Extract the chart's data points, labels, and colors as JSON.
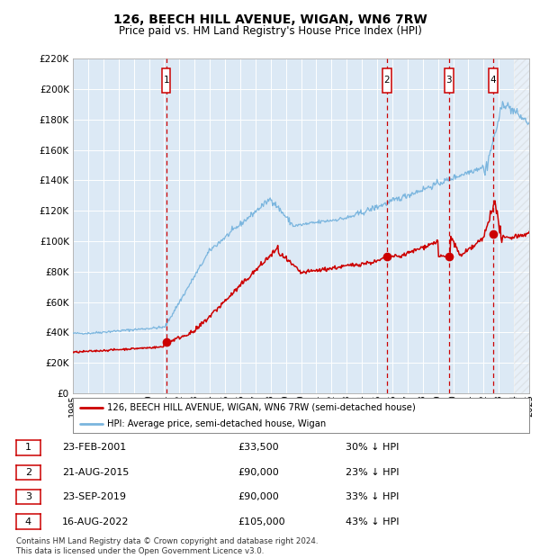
{
  "title": "126, BEECH HILL AVENUE, WIGAN, WN6 7RW",
  "subtitle": "Price paid vs. HM Land Registry's House Price Index (HPI)",
  "footnote": "Contains HM Land Registry data © Crown copyright and database right 2024.\nThis data is licensed under the Open Government Licence v3.0.",
  "ylim": [
    0,
    220000
  ],
  "yticks": [
    0,
    20000,
    40000,
    60000,
    80000,
    100000,
    120000,
    140000,
    160000,
    180000,
    200000,
    220000
  ],
  "ytick_labels": [
    "£0",
    "£20K",
    "£40K",
    "£60K",
    "£80K",
    "£100K",
    "£120K",
    "£140K",
    "£160K",
    "£180K",
    "£200K",
    "£220K"
  ],
  "xmin": 1995,
  "xmax": 2025,
  "bg_color": "#dce9f5",
  "hpi_color": "#7ab5de",
  "price_color": "#cc0000",
  "vline_color": "#cc0000",
  "sale_dates": [
    2001.14,
    2015.64,
    2019.73,
    2022.62
  ],
  "sale_prices": [
    33500,
    90000,
    90000,
    105000
  ],
  "sale_labels": [
    "1",
    "2",
    "3",
    "4"
  ],
  "sale_info": [
    {
      "label": "1",
      "date": "23-FEB-2001",
      "price": "£33,500",
      "hpi": "30% ↓ HPI"
    },
    {
      "label": "2",
      "date": "21-AUG-2015",
      "price": "£90,000",
      "hpi": "23% ↓ HPI"
    },
    {
      "label": "3",
      "date": "23-SEP-2019",
      "price": "£90,000",
      "hpi": "33% ↓ HPI"
    },
    {
      "label": "4",
      "date": "16-AUG-2022",
      "price": "£105,000",
      "hpi": "43% ↓ HPI"
    }
  ],
  "legend_price_label": "126, BEECH HILL AVENUE, WIGAN, WN6 7RW (semi-detached house)",
  "legend_hpi_label": "HPI: Average price, semi-detached house, Wigan"
}
